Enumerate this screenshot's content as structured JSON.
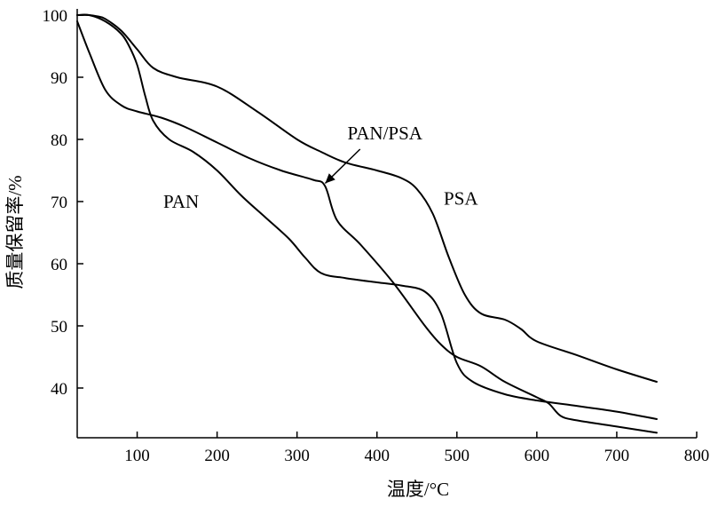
{
  "chart_data": {
    "type": "line",
    "xlabel": "温度/°C",
    "ylabel": "质量保留率/%",
    "xlim": [
      25,
      800
    ],
    "ylim": [
      32,
      101
    ],
    "xticks": [
      100,
      200,
      300,
      400,
      500,
      600,
      700,
      800
    ],
    "yticks": [
      40,
      50,
      60,
      70,
      80,
      90,
      100
    ],
    "grid": false,
    "series": [
      {
        "name": "PAN",
        "x": [
          25,
          40,
          60,
          80,
          90,
          100,
          110,
          120,
          140,
          170,
          200,
          230,
          260,
          290,
          310,
          330,
          360,
          400,
          430,
          460,
          480,
          500,
          520,
          560,
          600,
          640,
          700,
          750
        ],
        "y": [
          100,
          100,
          99,
          97,
          95,
          92,
          87,
          83,
          80,
          78,
          75,
          71,
          67.5,
          64,
          61,
          58.5,
          57.7,
          57,
          56.5,
          55.5,
          52,
          44,
          41,
          39,
          38,
          37.3,
          36.2,
          35
        ]
      },
      {
        "name": "PAN/PSA",
        "x": [
          25,
          40,
          60,
          80,
          100,
          130,
          160,
          200,
          240,
          280,
          320,
          335,
          350,
          380,
          420,
          460,
          480,
          500,
          530,
          560,
          600,
          615,
          630,
          650,
          700,
          750
        ],
        "y": [
          99,
          94,
          88,
          85.5,
          84.5,
          83.5,
          82,
          79.5,
          77,
          75,
          73.5,
          72.5,
          67,
          63,
          57,
          50,
          47,
          45,
          43.5,
          41,
          38.5,
          37.5,
          35.5,
          34.8,
          33.8,
          32.8
        ]
      },
      {
        "name": "PSA",
        "x": [
          25,
          40,
          50,
          60,
          80,
          100,
          120,
          150,
          200,
          250,
          300,
          330,
          360,
          400,
          430,
          450,
          470,
          490,
          510,
          530,
          560,
          580,
          600,
          650,
          700,
          750
        ],
        "y": [
          100,
          100,
          99.8,
          99.4,
          97.5,
          94.5,
          91.5,
          90,
          88.5,
          84.5,
          80,
          78,
          76.3,
          75,
          73.8,
          72,
          68,
          61,
          55,
          52,
          51,
          49.5,
          47.5,
          45.3,
          43,
          41
        ]
      }
    ],
    "annotations": [
      {
        "text": "PAN",
        "x": 155,
        "y": 70,
        "target": null
      },
      {
        "text": "PAN/PSA",
        "x": 410,
        "y": 81,
        "target": [
          333,
          72.5
        ]
      },
      {
        "text": "PSA",
        "x": 505,
        "y": 70.5,
        "target": null
      }
    ]
  }
}
